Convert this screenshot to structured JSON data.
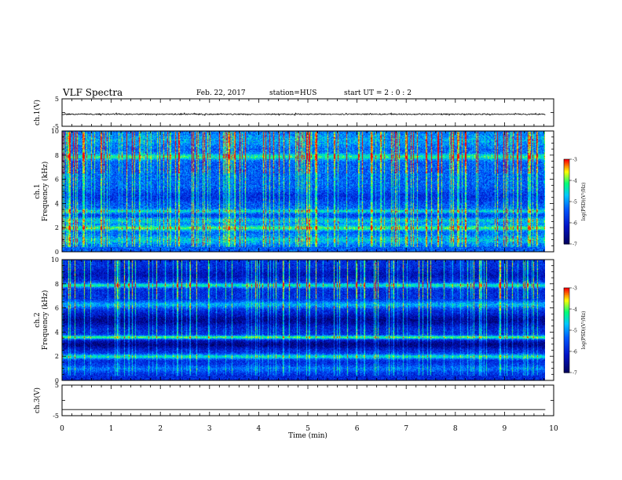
{
  "header": {
    "title": "VLF Spectra",
    "date": "Feb. 22, 2017",
    "station": "station=HUS",
    "start": "start UT =  2 : 0  : 2"
  },
  "chart_data": [
    {
      "type": "line",
      "ylabel": "ch.1(V)",
      "ylim": [
        -5,
        5
      ],
      "yticks": [
        "5",
        "-5"
      ],
      "xlim": [
        0,
        10
      ],
      "series": [
        {
          "values": [
            -0.9,
            -0.7,
            -0.6
          ]
        }
      ],
      "description_values": {
        "mean": -0.6,
        "noise": 0.4
      }
    },
    {
      "type": "heatmap",
      "ylabel_top": "ch.1",
      "ylabel": "Frequency (kHz)",
      "ylim": [
        0,
        10
      ],
      "yticks": [
        "0",
        "2",
        "4",
        "6",
        "8",
        "10"
      ],
      "xlim": [
        0,
        10
      ],
      "colorbar": {
        "label": "log(PSD)(V²/Hz)",
        "ticks": [
          "-3",
          "-4",
          "-5",
          "-6",
          "-7"
        ],
        "range": [
          -7,
          -3
        ]
      }
    },
    {
      "type": "heatmap",
      "ylabel_top": "ch.2",
      "ylabel": "Frequency (kHz)",
      "ylim": [
        0,
        10
      ],
      "yticks": [
        "0",
        "2",
        "4",
        "6",
        "8",
        "10"
      ],
      "xlim": [
        0,
        10
      ],
      "colorbar": {
        "label": "log(PSD)(V²/Hz)",
        "ticks": [
          "-3",
          "-4",
          "-5",
          "-6",
          "-7"
        ],
        "range": [
          -7,
          -3
        ]
      }
    },
    {
      "type": "line",
      "ylabel": "ch.3(V)",
      "ylim": [
        -5,
        5
      ],
      "yticks": [
        "5",
        "-5"
      ],
      "xlim": [
        0,
        10
      ],
      "series": [
        {
          "values": [
            -3,
            -3
          ]
        }
      ]
    }
  ],
  "xaxis": {
    "label": "Time (min)",
    "ticks": [
      "0",
      "1",
      "2",
      "3",
      "4",
      "5",
      "6",
      "7",
      "8",
      "9",
      "10"
    ]
  },
  "colors": {
    "frame": "#000000",
    "deep": "#000060",
    "blue": "#0033e0",
    "cyan": "#00c8ff",
    "green": "#00ff66"
  }
}
